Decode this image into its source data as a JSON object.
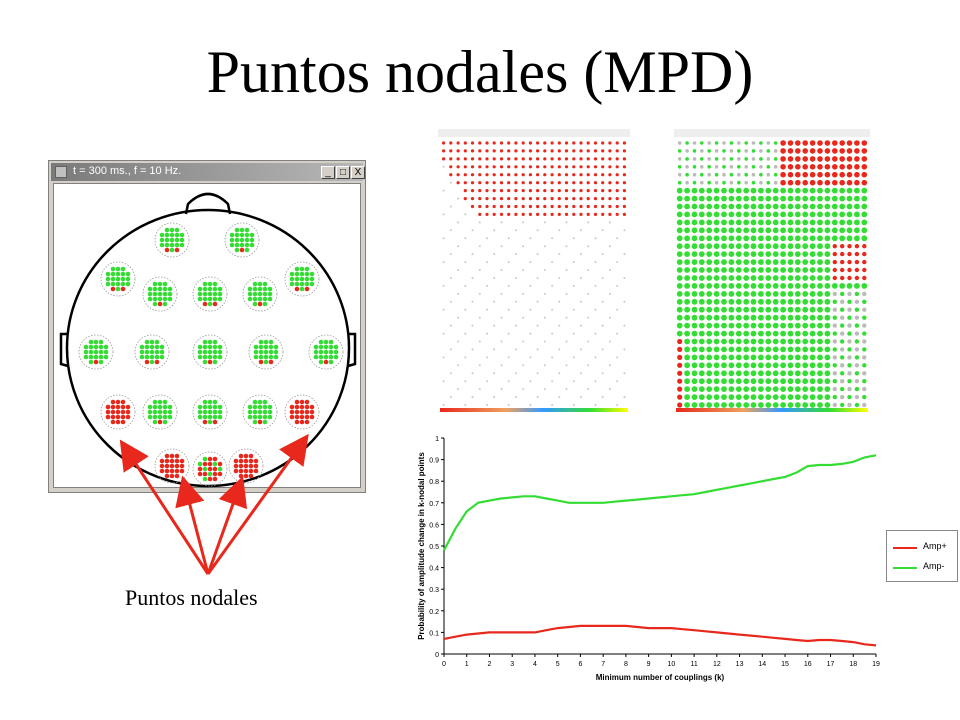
{
  "slide": {
    "title": "Puntos nodales (MPD)",
    "caption": "Puntos nodales"
  },
  "window": {
    "title": "t = 300 ms., f = 10 Hz.",
    "minimize_label": "_",
    "maximize_label": "□",
    "close_label": "X"
  },
  "colors": {
    "amp_plus": "#e8281c",
    "amp_minus": "#33dd33",
    "arrow": "#e8281c"
  },
  "chart_data": {
    "type": "line",
    "x": [
      0,
      0.5,
      1,
      1.5,
      2,
      2.5,
      3,
      3.5,
      4,
      4.5,
      5,
      5.5,
      6,
      6.5,
      7,
      7.5,
      8,
      8.5,
      9,
      9.5,
      10,
      10.5,
      11,
      11.5,
      12,
      12.5,
      13,
      13.5,
      14,
      14.5,
      15,
      15.5,
      16,
      16.5,
      17,
      17.5,
      18,
      18.5,
      19
    ],
    "series": [
      {
        "name": "Amp+",
        "color": "#e8281c",
        "values": [
          0.07,
          0.08,
          0.09,
          0.095,
          0.1,
          0.1,
          0.1,
          0.1,
          0.1,
          0.11,
          0.12,
          0.125,
          0.13,
          0.13,
          0.13,
          0.13,
          0.13,
          0.125,
          0.12,
          0.12,
          0.12,
          0.115,
          0.11,
          0.105,
          0.1,
          0.095,
          0.09,
          0.085,
          0.08,
          0.075,
          0.07,
          0.065,
          0.06,
          0.065,
          0.065,
          0.06,
          0.055,
          0.045,
          0.04
        ]
      },
      {
        "name": "Amp-",
        "color": "#33dd33",
        "values": [
          0.48,
          0.58,
          0.66,
          0.7,
          0.71,
          0.72,
          0.725,
          0.73,
          0.73,
          0.72,
          0.71,
          0.7,
          0.7,
          0.7,
          0.7,
          0.705,
          0.71,
          0.715,
          0.72,
          0.725,
          0.73,
          0.735,
          0.74,
          0.75,
          0.76,
          0.77,
          0.78,
          0.79,
          0.8,
          0.81,
          0.82,
          0.84,
          0.87,
          0.875,
          0.875,
          0.88,
          0.89,
          0.91,
          0.92
        ]
      }
    ],
    "xlabel": "Minimum number of couplings (k)",
    "ylabel": "Probability of amplitude change in k-nodal points",
    "xticks": [
      "0",
      "1",
      "2",
      "3",
      "4",
      "5",
      "6",
      "7",
      "8",
      "9",
      "10",
      "11",
      "12",
      "13",
      "14",
      "15",
      "16",
      "17",
      "18",
      "19"
    ],
    "yticks": [
      "0",
      "0.1",
      "0.2",
      "0.3",
      "0.4",
      "0.5",
      "0.6",
      "0.7",
      "0.8",
      "0.9",
      "1"
    ],
    "xlim": [
      0,
      19
    ],
    "ylim": [
      0,
      1
    ],
    "grid": false,
    "legend": "right"
  }
}
